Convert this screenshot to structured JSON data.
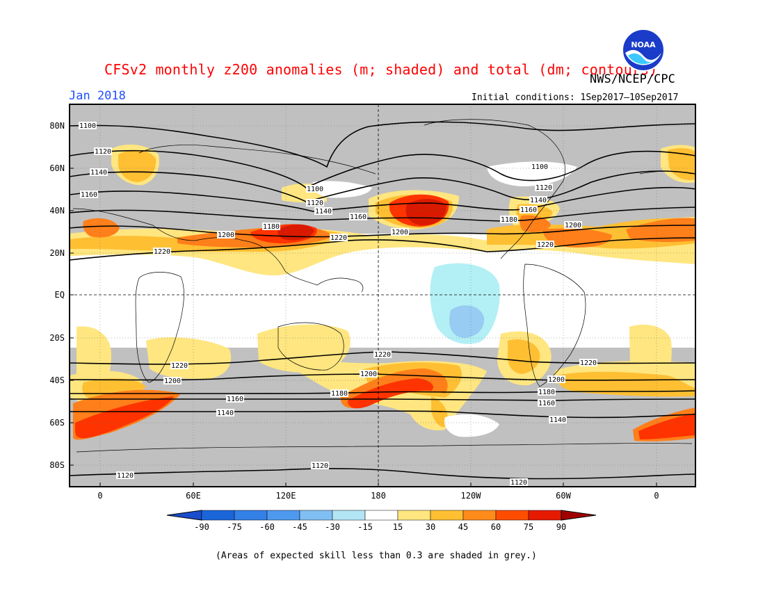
{
  "title": "CFSv2 monthly z200 anomalies (m; shaded) and total (dm; contours)",
  "agency": "NWS/NCEP/CPC",
  "month": "Jan 2018",
  "initial_conditions": "Initial conditions: 1Sep2017–10Sep2017",
  "footnote": "(Areas of expected skill less than 0.3 are shaded in grey.)",
  "logo": {
    "text": "NOAA",
    "icon": "noaa-logo"
  },
  "map": {
    "lat_labels": [
      "80N",
      "60N",
      "40N",
      "20N",
      "EQ",
      "20S",
      "40S",
      "60S",
      "80S"
    ],
    "lon_labels": [
      "0",
      "60E",
      "120E",
      "180",
      "120W",
      "60W",
      "0"
    ],
    "contour_labels": {
      "1100": "1100",
      "1120": "1120",
      "1140": "1140",
      "1160": "1160",
      "1180": "1180",
      "1200": "1200",
      "1220": "1220"
    },
    "colors": {
      "skill_grey": "#c0c0c0",
      "pos15": "#ffe680",
      "pos30": "#ffbf33",
      "pos45": "#ff7f1a",
      "pos60": "#ff3300",
      "pos75": "#d91a00",
      "neg15": "#b3f0f5",
      "neg30": "#99ccf2"
    }
  },
  "colorbar": {
    "labels": [
      "-90",
      "-75",
      "-60",
      "-45",
      "-30",
      "-15",
      "15",
      "30",
      "45",
      "60",
      "75",
      "90"
    ],
    "colors": [
      "#1a66d9",
      "#3380e6",
      "#4d99ee",
      "#80bff2",
      "#b3e6f5",
      "#ffffff",
      "#ffe680",
      "#ffbf33",
      "#ff8c1a",
      "#ff4d00",
      "#e61a00",
      "#b30000"
    ],
    "low_end_color": "#1a4dcc",
    "high_end_color": "#a00000"
  }
}
